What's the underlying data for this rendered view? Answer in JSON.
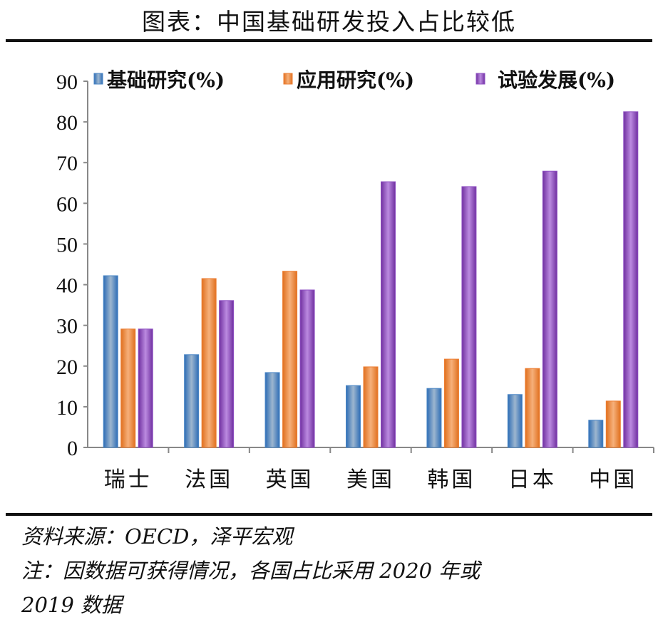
{
  "title": "图表：中国基础研发投入占比较低",
  "chart_data": {
    "type": "bar",
    "categories": [
      "瑞士",
      "法国",
      "英国",
      "美国",
      "韩国",
      "日本",
      "中国"
    ],
    "series": [
      {
        "name": "基础研究(%)",
        "color": "#4a86c5",
        "values": [
          42.2,
          22.8,
          18.4,
          15.2,
          14.5,
          13.0,
          6.7
        ]
      },
      {
        "name": "应用研究(%)",
        "color": "#ed7d31",
        "values": [
          29.1,
          41.5,
          43.3,
          19.8,
          21.7,
          19.4,
          11.4
        ]
      },
      {
        "name": "试验发展(%)",
        "color": "#8e4fc2",
        "values": [
          29.1,
          36.1,
          38.7,
          65.3,
          64.1,
          67.9,
          82.5
        ]
      }
    ],
    "ylim": [
      0,
      90
    ],
    "yticks": [
      0,
      10,
      20,
      30,
      40,
      50,
      60,
      70,
      80,
      90
    ],
    "legend": "top",
    "grid": false
  },
  "source": "资料来源：OECD，泽平宏观",
  "note_line1": "注：因数据可获得情况，各国占比采用 2020 年或",
  "note_line2": "2019 数据"
}
